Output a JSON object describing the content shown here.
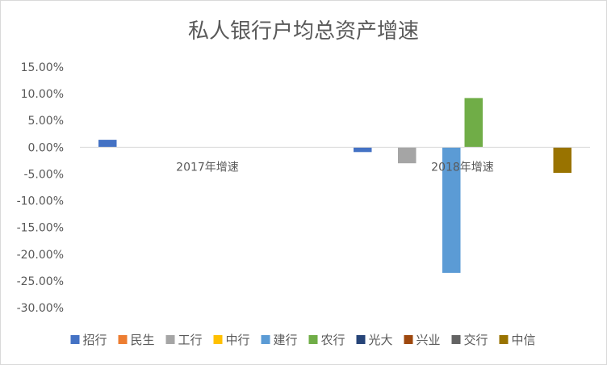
{
  "chart_data": {
    "type": "bar",
    "title": "私人银行户均总资产增速",
    "xlabel": "",
    "ylabel": "",
    "ylim": [
      -30,
      15
    ],
    "y_tick_labels": [
      "15.00%",
      "10.00%",
      "5.00%",
      "0.00%",
      "-5.00%",
      "-10.00%",
      "-15.00%",
      "-20.00%",
      "-25.00%",
      "-30.00%"
    ],
    "categories": [
      "2017年增速",
      "2018年增速"
    ],
    "grid": false,
    "legend_position": "bottom",
    "series": [
      {
        "name": "招行",
        "color": "#4472C4",
        "values": [
          1.4,
          -0.9
        ]
      },
      {
        "name": "民生",
        "color": "#ED7D31",
        "values": [
          null,
          null
        ]
      },
      {
        "name": "工行",
        "color": "#A5A5A5",
        "values": [
          null,
          -3.0
        ]
      },
      {
        "name": "中行",
        "color": "#FFC000",
        "values": [
          null,
          null
        ]
      },
      {
        "name": "建行",
        "color": "#5B9BD5",
        "values": [
          null,
          -23.5
        ]
      },
      {
        "name": "农行",
        "color": "#70AD47",
        "values": [
          null,
          9.2
        ]
      },
      {
        "name": "光大",
        "color": "#264478",
        "values": [
          null,
          null
        ]
      },
      {
        "name": "兴业",
        "color": "#9E480E",
        "values": [
          null,
          null
        ]
      },
      {
        "name": "交行",
        "color": "#636363",
        "values": [
          null,
          null
        ]
      },
      {
        "name": "中信",
        "color": "#997300",
        "values": [
          null,
          -4.8
        ]
      }
    ]
  }
}
